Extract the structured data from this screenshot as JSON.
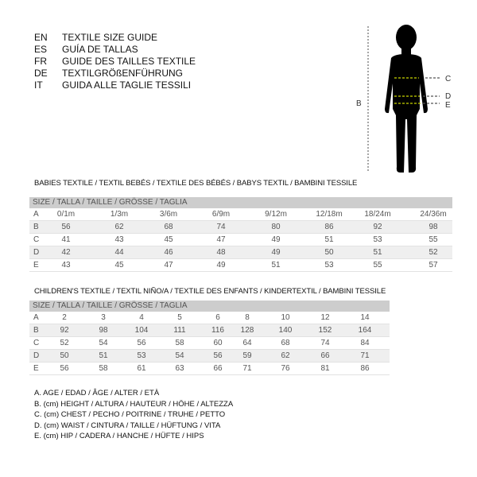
{
  "title_lines": [
    {
      "code": "EN",
      "text": "TEXTILE SIZE GUIDE"
    },
    {
      "code": "ES",
      "text": "GUÍA DE TALLAS"
    },
    {
      "code": "FR",
      "text": "GUIDE DES TAILLES TEXTILE"
    },
    {
      "code": "DE",
      "text": "TEXTILGRÖßENFÜHRUNG"
    },
    {
      "code": "IT",
      "text": "GUIDA ALLE TAGLIE TESSILI"
    }
  ],
  "figure": {
    "labels": {
      "B": "B",
      "C": "C",
      "D": "D",
      "E": "E"
    },
    "measure_line_color": "#c8d400"
  },
  "babies": {
    "title": "BABIES TEXTILE / TEXTIL BEBÉS / TEXTILE DES BÉBÉS / BABYS TEXTIL  / BAMBINI TESSILE",
    "header": "SIZE / TALLA / TAILLE / GRÖSSE / TAGLIA",
    "rows": [
      {
        "label": "A",
        "values": [
          "0/1m",
          "1/3m",
          "3/6m",
          "6/9m",
          "9/12m",
          "12/18m",
          "18/24m",
          "24/36m"
        ]
      },
      {
        "label": "B",
        "values": [
          "56",
          "62",
          "68",
          "74",
          "80",
          "86",
          "92",
          "98"
        ]
      },
      {
        "label": "C",
        "values": [
          "41",
          "43",
          "45",
          "47",
          "49",
          "51",
          "53",
          "55"
        ]
      },
      {
        "label": "D",
        "values": [
          "42",
          "44",
          "46",
          "48",
          "49",
          "50",
          "51",
          "52"
        ]
      },
      {
        "label": "E",
        "values": [
          "43",
          "45",
          "47",
          "49",
          "51",
          "53",
          "55",
          "57"
        ]
      }
    ]
  },
  "children": {
    "title": "CHILDREN'S TEXTILE / TEXTIL NIÑO/A / TEXTILE DES ENFANTS / KINDERTEXTIL / BAMBINI TESSILE",
    "header": "SIZE / TALLA / TAILLE / GRÖSSE / TAGLIA",
    "rows": [
      {
        "label": "A",
        "values": [
          "2",
          "3",
          "4",
          "5",
          "6",
          "8",
          "10",
          "12",
          "14"
        ]
      },
      {
        "label": "B",
        "values": [
          "92",
          "98",
          "104",
          "111",
          "116",
          "128",
          "140",
          "152",
          "164"
        ]
      },
      {
        "label": "C",
        "values": [
          "52",
          "54",
          "56",
          "58",
          "60",
          "64",
          "68",
          "74",
          "84"
        ]
      },
      {
        "label": "D",
        "values": [
          "50",
          "51",
          "53",
          "54",
          "56",
          "59",
          "62",
          "66",
          "71"
        ]
      },
      {
        "label": "E",
        "values": [
          "56",
          "58",
          "61",
          "63",
          "66",
          "71",
          "76",
          "81",
          "86"
        ]
      }
    ]
  },
  "legend": [
    "A. AGE / EDAD / ÂGE / ALTER / ETÀ",
    "B. (cm) HEIGHT / ALTURA / HAUTEUR / HÖHE / ALTEZZA",
    "C. (cm) CHEST / PECHO / POITRINE / TRUHE / PETTO",
    "D. (cm) WAIST / CINTURA / TAILLE / HÜFTUNG / VITA",
    "E. (cm) HIP / CADERA / HANCHE / HÜFTE / HIPS"
  ]
}
